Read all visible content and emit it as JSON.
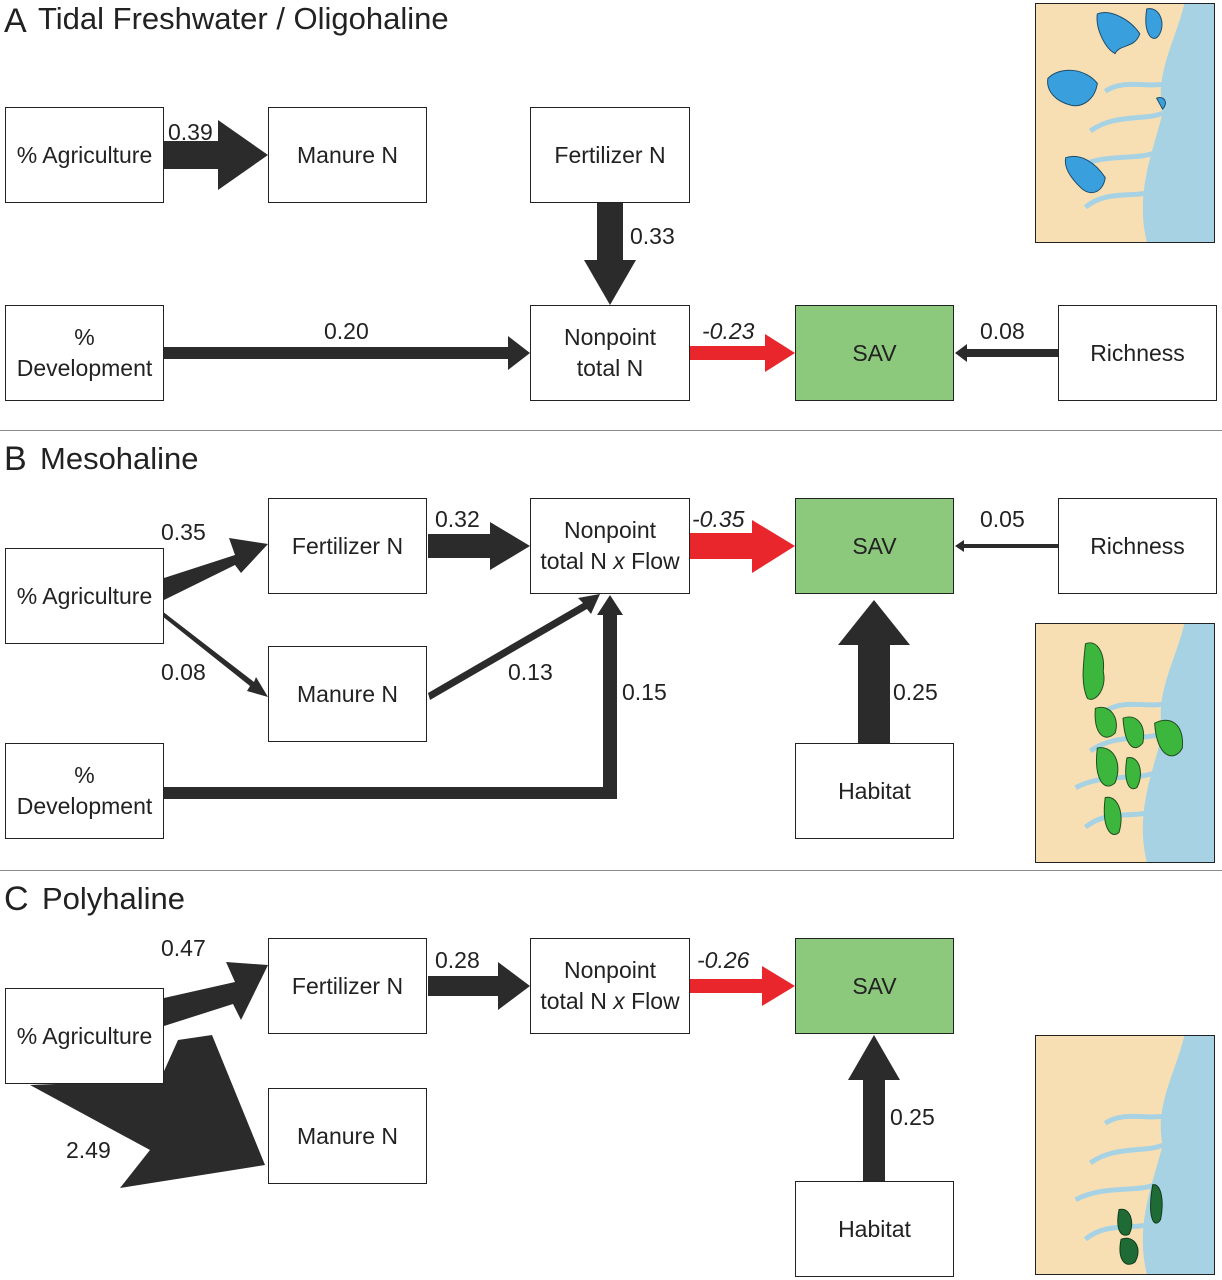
{
  "panels": [
    {
      "letter": "A",
      "title": "Tidal Freshwater / Oligohaline",
      "nodes": {
        "agriculture": "% Agriculture",
        "manure": "Manure N",
        "fertilizer": "Fertilizer N",
        "development": "%\nDevelopment",
        "nonpoint": "Nonpoint\ntotal N",
        "sav": "SAV",
        "richness": "Richness"
      },
      "coefficients": {
        "agriculture_manure": "0.39",
        "fertilizer_nonpoint": "0.33",
        "development_nonpoint": "0.20",
        "nonpoint_sav": "-0.23",
        "richness_sav": "0.08"
      },
      "map_color": "#3aa0dd"
    },
    {
      "letter": "B",
      "title": "Mesohaline",
      "nodes": {
        "agriculture": "% Agriculture",
        "fertilizer": "Fertilizer N",
        "manure": "Manure N",
        "development": "%\nDevelopment",
        "nonpoint_line1": "Nonpoint",
        "nonpoint_line2a": "total N ",
        "nonpoint_x": "x",
        "nonpoint_line2b": " Flow",
        "sav": "SAV",
        "richness": "Richness",
        "habitat": "Habitat"
      },
      "coefficients": {
        "agriculture_fertilizer": "0.35",
        "fertilizer_nonpoint": "0.32",
        "nonpoint_sav": "-0.35",
        "richness_sav": "0.05",
        "agriculture_manure": "0.08",
        "manure_nonpoint": "0.13",
        "development_nonpoint": "0.15",
        "habitat_sav": "0.25"
      },
      "map_color": "#3db63d"
    },
    {
      "letter": "C",
      "title": "Polyhaline",
      "nodes": {
        "agriculture": "% Agriculture",
        "fertilizer": "Fertilizer N",
        "manure": "Manure N",
        "nonpoint_line1": "Nonpoint",
        "nonpoint_line2a": "total N ",
        "nonpoint_x": "x",
        "nonpoint_line2b": " Flow",
        "sav": "SAV",
        "habitat": "Habitat"
      },
      "coefficients": {
        "agriculture_fertilizer": "0.47",
        "fertilizer_nonpoint": "0.28",
        "nonpoint_sav": "-0.26",
        "agriculture_manure": "2.49",
        "habitat_sav": "0.25"
      },
      "map_color": "#1f6b35"
    }
  ],
  "colors": {
    "arrow": "#2b2b2b",
    "negative_arrow": "#e8262b",
    "sav_fill": "#8cc97c",
    "land": "#f7dfb3",
    "water": "#a7d2e4"
  }
}
